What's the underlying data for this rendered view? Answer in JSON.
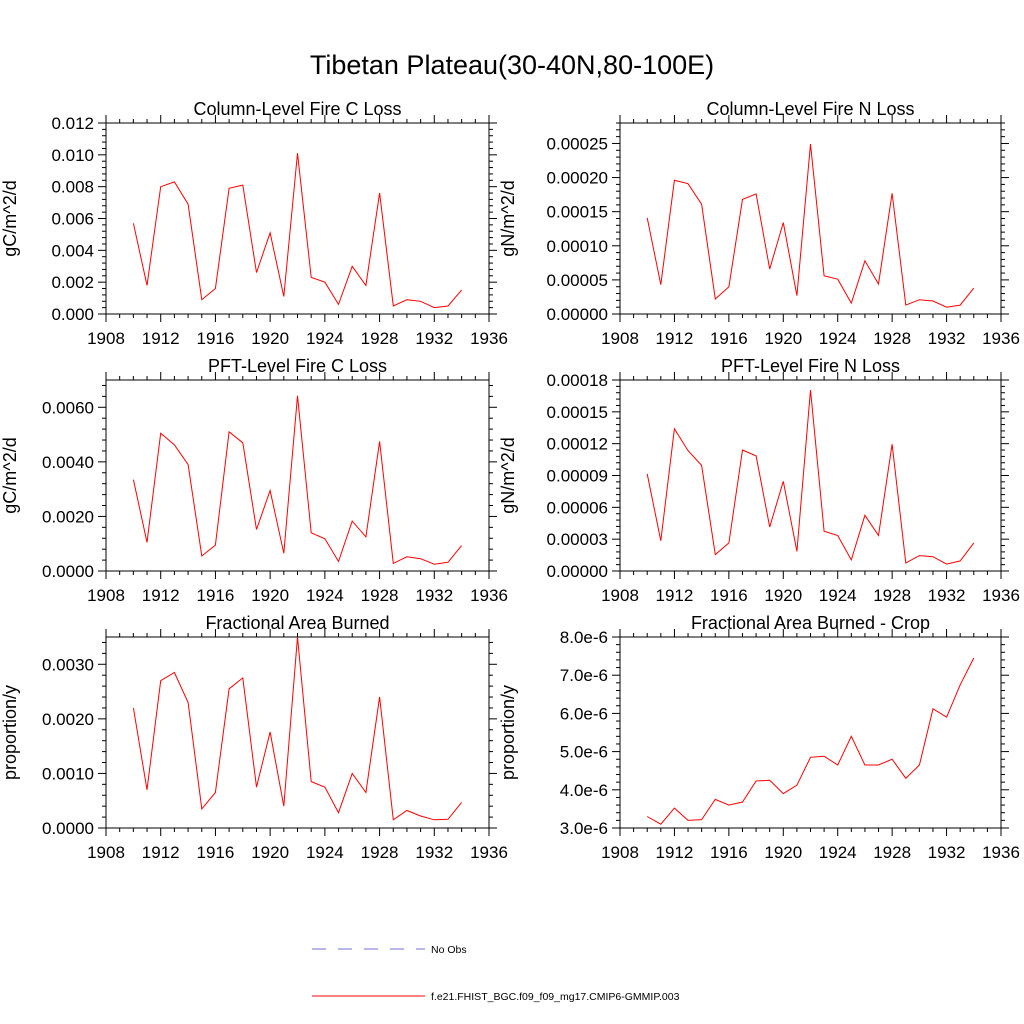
{
  "figure_title": "Tibetan Plateau(30-40N,80-100E)",
  "legend": [
    {
      "label": "No Obs",
      "color": "#6f6fd8",
      "style": "dashed"
    },
    {
      "label": "f.e21.FHIST_BGC.f09_f09_mg17.CMIP6-GMMIP.003",
      "color": "#ff0000",
      "style": "solid"
    }
  ],
  "chart_data": [
    {
      "type": "line",
      "title": "Column-Level Fire C Loss",
      "xlabel": "",
      "ylabel": "gC/m^2/d",
      "xlim": [
        1908,
        1936
      ],
      "xticks": [
        1908,
        1912,
        1916,
        1920,
        1924,
        1928,
        1932,
        1936
      ],
      "xtick_labels": [
        "1908",
        "1912",
        "1916",
        "1920",
        "1924",
        "1928",
        "1932",
        "1936"
      ],
      "ylim": [
        0,
        0.012
      ],
      "yticks": [
        0,
        0.002,
        0.004,
        0.006,
        0.008,
        0.01,
        0.012
      ],
      "ytick_labels": [
        "0.000",
        "0.002",
        "0.004",
        "0.006",
        "0.008",
        "0.010",
        "0.012"
      ],
      "series": [
        {
          "name": "f.e21.FHIST_BGC.f09_f09_mg17.CMIP6-GMMIP.003",
          "color": "#ff0000",
          "x": [
            1910,
            1911,
            1912,
            1913,
            1914,
            1915,
            1916,
            1917,
            1918,
            1919,
            1920,
            1921,
            1922,
            1923,
            1924,
            1925,
            1926,
            1927,
            1928,
            1929,
            1930,
            1931,
            1932,
            1933,
            1934
          ],
          "y": [
            0.0057,
            0.0018,
            0.008,
            0.0083,
            0.0069,
            0.0009,
            0.0016,
            0.0079,
            0.0081,
            0.0026,
            0.0051,
            0.0011,
            0.0101,
            0.0023,
            0.002,
            0.0006,
            0.003,
            0.0018,
            0.0076,
            0.0005,
            0.0009,
            0.0008,
            0.0004,
            0.0005,
            0.0015
          ]
        }
      ]
    },
    {
      "type": "line",
      "title": "Column-Level Fire N Loss",
      "xlabel": "",
      "ylabel": "gN/m^2/d",
      "xlim": [
        1908,
        1936
      ],
      "xticks": [
        1908,
        1912,
        1916,
        1920,
        1924,
        1928,
        1932,
        1936
      ],
      "xtick_labels": [
        "1908",
        "1912",
        "1916",
        "1920",
        "1924",
        "1928",
        "1932",
        "1936"
      ],
      "ylim": [
        0,
        0.00028
      ],
      "yticks": [
        0,
        5e-05,
        0.0001,
        0.00015,
        0.0002,
        0.00025
      ],
      "ytick_labels": [
        "0.00000",
        "0.00005",
        "0.00010",
        "0.00015",
        "0.00020",
        "0.00025"
      ],
      "series": [
        {
          "name": "f.e21.FHIST_BGC.f09_f09_mg17.CMIP6-GMMIP.003",
          "color": "#ff0000",
          "x": [
            1910,
            1911,
            1912,
            1913,
            1914,
            1915,
            1916,
            1917,
            1918,
            1919,
            1920,
            1921,
            1922,
            1923,
            1924,
            1925,
            1926,
            1927,
            1928,
            1929,
            1930,
            1931,
            1932,
            1933,
            1934
          ],
          "y": [
            0.000141,
            4.3e-05,
            0.000196,
            0.000191,
            0.000161,
            2.2e-05,
            4e-05,
            0.000168,
            0.000176,
            6.6e-05,
            0.000134,
            2.7e-05,
            0.000249,
            5.6e-05,
            5.1e-05,
            1.6e-05,
            7.8e-05,
            4.4e-05,
            0.000177,
            1.3e-05,
            2.1e-05,
            1.9e-05,
            1e-05,
            1.3e-05,
            3.8e-05
          ]
        }
      ]
    },
    {
      "type": "line",
      "title": "PFT-Level Fire C Loss",
      "xlabel": "",
      "ylabel": "gC/m^2/d",
      "xlim": [
        1908,
        1936
      ],
      "xticks": [
        1908,
        1912,
        1916,
        1920,
        1924,
        1928,
        1932,
        1936
      ],
      "xtick_labels": [
        "1908",
        "1912",
        "1916",
        "1920",
        "1924",
        "1928",
        "1932",
        "1936"
      ],
      "ylim": [
        0,
        0.007
      ],
      "yticks": [
        0,
        0.002,
        0.004,
        0.006
      ],
      "ytick_labels": [
        "0.0000",
        "0.0020",
        "0.0040",
        "0.0060"
      ],
      "series": [
        {
          "name": "f.e21.FHIST_BGC.f09_f09_mg17.CMIP6-GMMIP.003",
          "color": "#ff0000",
          "x": [
            1910,
            1911,
            1912,
            1913,
            1914,
            1915,
            1916,
            1917,
            1918,
            1919,
            1920,
            1921,
            1922,
            1923,
            1924,
            1925,
            1926,
            1927,
            1928,
            1929,
            1930,
            1931,
            1932,
            1933,
            1934
          ],
          "y": [
            0.00335,
            0.00105,
            0.00505,
            0.00462,
            0.0039,
            0.00055,
            0.00095,
            0.0051,
            0.0047,
            0.00152,
            0.00295,
            0.00065,
            0.00642,
            0.0014,
            0.00118,
            0.00035,
            0.00183,
            0.00125,
            0.00475,
            0.00028,
            0.00052,
            0.00045,
            0.00025,
            0.00032,
            0.00093
          ]
        }
      ]
    },
    {
      "type": "line",
      "title": "PFT-Level Fire N Loss",
      "xlabel": "",
      "ylabel": "gN/m^2/d",
      "xlim": [
        1908,
        1936
      ],
      "xticks": [
        1908,
        1912,
        1916,
        1920,
        1924,
        1928,
        1932,
        1936
      ],
      "xtick_labels": [
        "1908",
        "1912",
        "1916",
        "1920",
        "1924",
        "1928",
        "1932",
        "1936"
      ],
      "ylim": [
        0,
        0.00018
      ],
      "yticks": [
        0,
        3e-05,
        6e-05,
        9e-05,
        0.00012,
        0.00015,
        0.00018
      ],
      "ytick_labels": [
        "0.00000",
        "0.00003",
        "0.00006",
        "0.00009",
        "0.00012",
        "0.00015",
        "0.00018"
      ],
      "series": [
        {
          "name": "f.e21.FHIST_BGC.f09_f09_mg17.CMIP6-GMMIP.003",
          "color": "#ff0000",
          "x": [
            1910,
            1911,
            1912,
            1913,
            1914,
            1915,
            1916,
            1917,
            1918,
            1919,
            1920,
            1921,
            1922,
            1923,
            1924,
            1925,
            1926,
            1927,
            1928,
            1929,
            1930,
            1931,
            1932,
            1933,
            1934
          ],
          "y": [
            9.15e-05,
            2.85e-05,
            0.000134,
            0.0001135,
            9.95e-05,
            1.55e-05,
            2.65e-05,
            0.000114,
            0.0001085,
            4.15e-05,
            8.45e-05,
            1.85e-05,
            0.0001705,
            3.75e-05,
            3.35e-05,
            1.05e-05,
            5.25e-05,
            3.35e-05,
            0.0001195,
            7.5e-06,
            1.45e-05,
            1.35e-05,
            6.5e-06,
            9.5e-06,
            2.65e-05
          ]
        }
      ]
    },
    {
      "type": "line",
      "title": "Fractional Area Burned",
      "xlabel": "",
      "ylabel": "proportion/y",
      "xlim": [
        1908,
        1936
      ],
      "xticks": [
        1908,
        1912,
        1916,
        1920,
        1924,
        1928,
        1932,
        1936
      ],
      "xtick_labels": [
        "1908",
        "1912",
        "1916",
        "1920",
        "1924",
        "1928",
        "1932",
        "1936"
      ],
      "ylim": [
        0,
        0.0035
      ],
      "yticks": [
        0,
        0.001,
        0.002,
        0.003
      ],
      "ytick_labels": [
        "0.0000",
        "0.0010",
        "0.0020",
        "0.0030"
      ],
      "series": [
        {
          "name": "f.e21.FHIST_BGC.f09_f09_mg17.CMIP6-GMMIP.003",
          "color": "#ff0000",
          "x": [
            1910,
            1911,
            1912,
            1913,
            1914,
            1915,
            1916,
            1917,
            1918,
            1919,
            1920,
            1921,
            1922,
            1923,
            1924,
            1925,
            1926,
            1927,
            1928,
            1929,
            1930,
            1931,
            1932,
            1933,
            1934
          ],
          "y": [
            0.0022,
            0.0007,
            0.0027,
            0.00285,
            0.0023,
            0.00035,
            0.00065,
            0.00255,
            0.00275,
            0.00075,
            0.00176,
            0.0004,
            0.0035,
            0.00085,
            0.00075,
            0.00028,
            0.001,
            0.00065,
            0.0024,
            0.00015,
            0.00032,
            0.00022,
            0.00015,
            0.00016,
            0.00047
          ]
        }
      ]
    },
    {
      "type": "line",
      "title": "Fractional Area Burned - Crop",
      "xlabel": "",
      "ylabel": "proportion/y",
      "xlim": [
        1908,
        1936
      ],
      "xticks": [
        1908,
        1912,
        1916,
        1920,
        1924,
        1928,
        1932,
        1936
      ],
      "xtick_labels": [
        "1908",
        "1912",
        "1916",
        "1920",
        "1924",
        "1928",
        "1932",
        "1936"
      ],
      "ylim": [
        3e-06,
        8e-06
      ],
      "yticks": [
        3e-06,
        4e-06,
        5e-06,
        6e-06,
        7e-06,
        8e-06
      ],
      "ytick_labels": [
        "3.0e-6",
        "4.0e-6",
        "5.0e-6",
        "6.0e-6",
        "7.0e-6",
        "8.0e-6"
      ],
      "series": [
        {
          "name": "f.e21.FHIST_BGC.f09_f09_mg17.CMIP6-GMMIP.003",
          "color": "#ff0000",
          "x": [
            1910,
            1911,
            1912,
            1913,
            1914,
            1915,
            1916,
            1917,
            1918,
            1919,
            1920,
            1921,
            1922,
            1923,
            1924,
            1925,
            1926,
            1927,
            1928,
            1929,
            1930,
            1931,
            1932,
            1933,
            1934
          ],
          "y": [
            3.3e-06,
            3.1e-06,
            3.52e-06,
            3.2e-06,
            3.22e-06,
            3.75e-06,
            3.6e-06,
            3.68e-06,
            4.23e-06,
            4.25e-06,
            3.9e-06,
            4.12e-06,
            4.85e-06,
            4.88e-06,
            4.65e-06,
            5.4e-06,
            4.65e-06,
            4.65e-06,
            4.8e-06,
            4.3e-06,
            4.65e-06,
            6.12e-06,
            5.9e-06,
            6.75e-06,
            7.45e-06
          ]
        }
      ]
    }
  ]
}
